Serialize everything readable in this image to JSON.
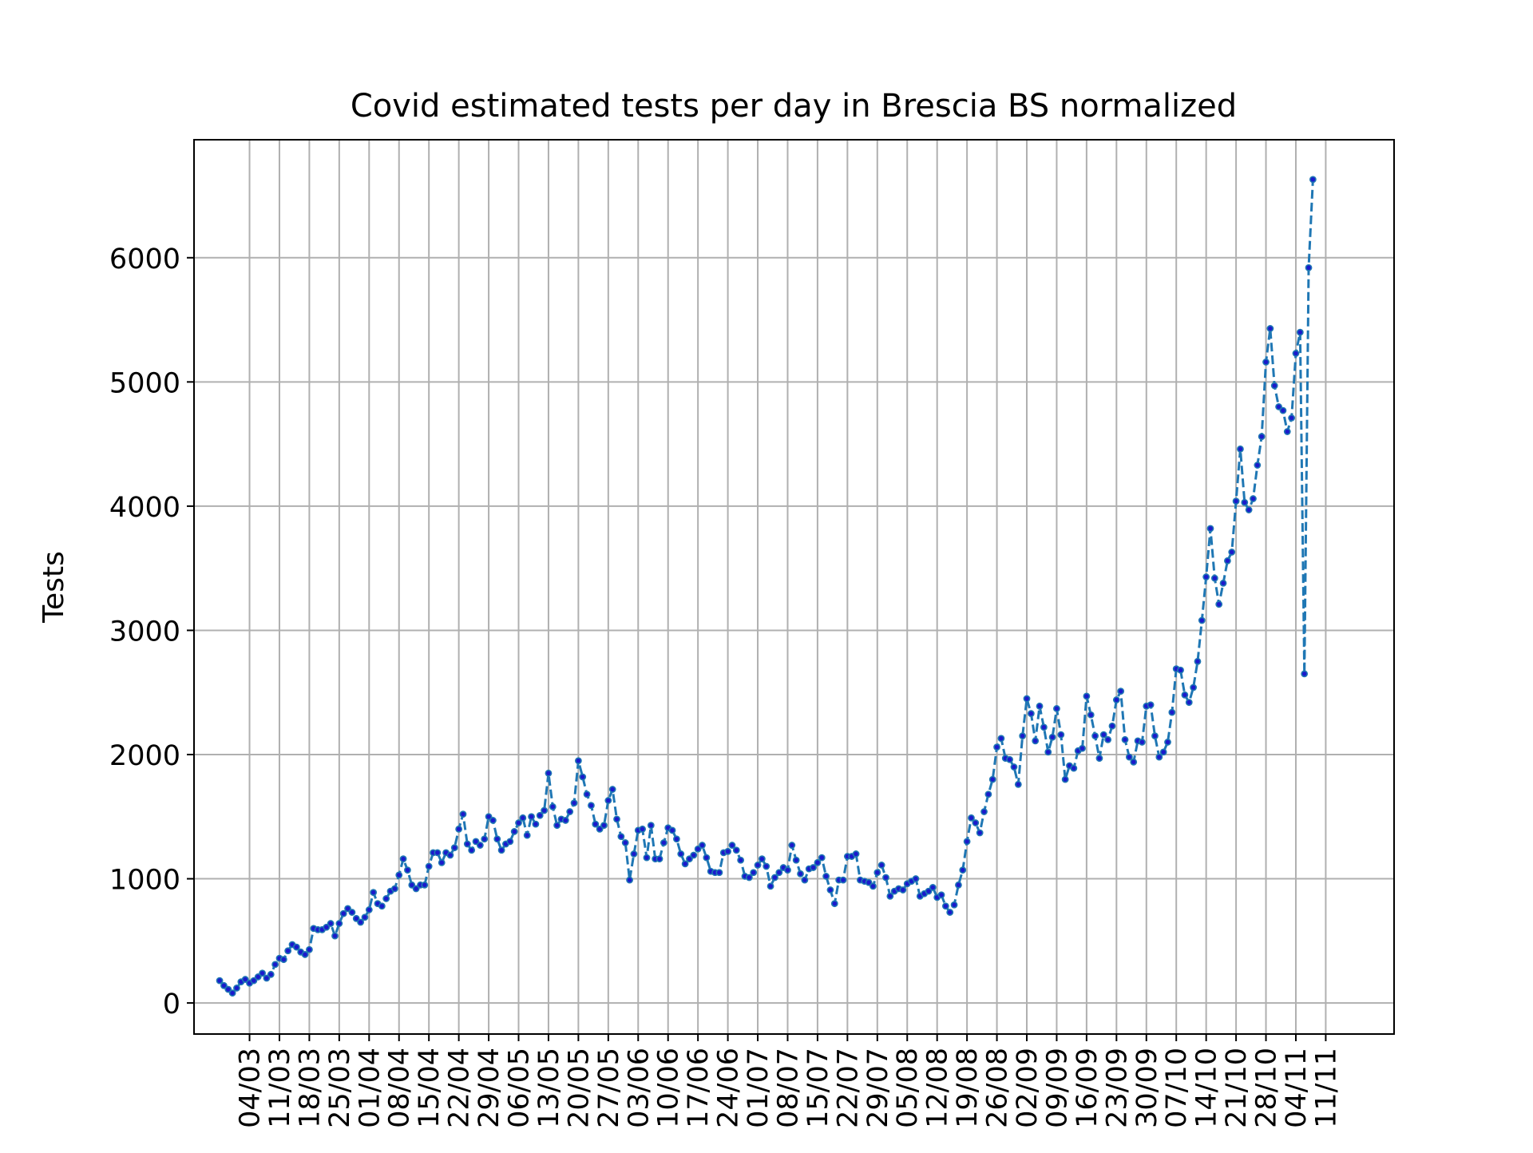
{
  "chart_data": {
    "type": "line",
    "title": "Covid estimated tests per day in Brescia BS normalized",
    "xlabel": "",
    "ylabel": "Tests",
    "x_tick_labels": [
      "04/03",
      "11/03",
      "18/03",
      "25/03",
      "01/04",
      "08/04",
      "15/04",
      "22/04",
      "29/04",
      "06/05",
      "13/05",
      "20/05",
      "27/05",
      "03/06",
      "10/06",
      "17/06",
      "24/06",
      "01/07",
      "08/07",
      "15/07",
      "22/07",
      "29/07",
      "05/08",
      "12/08",
      "19/08",
      "26/08",
      "02/09",
      "09/09",
      "16/09",
      "23/09",
      "30/09",
      "07/10",
      "14/10",
      "21/10",
      "28/10",
      "04/11",
      "11/11"
    ],
    "y_ticks": [
      0,
      1000,
      2000,
      3000,
      4000,
      5000,
      6000
    ],
    "ylim": [
      -250,
      6950
    ],
    "xlim_days": [
      -6,
      275
    ],
    "grid": true,
    "legend": "none",
    "line_style": "dashed",
    "marker": "dot",
    "colors": {
      "line": "#1f77b4",
      "marker_edge": "#1f77b4",
      "marker_face": "#1a1acc",
      "grid": "#b0b0b0",
      "axes": "#000000",
      "background": "#ffffff"
    },
    "series": [
      {
        "x_start": "26/02",
        "values": [
          180,
          140,
          110,
          80,
          120,
          170,
          190,
          160,
          180,
          210,
          240,
          200,
          230,
          310,
          360,
          350,
          420,
          470,
          450,
          410,
          390,
          430,
          600,
          590,
          590,
          610,
          640,
          540,
          640,
          720,
          760,
          730,
          680,
          650,
          690,
          750,
          890,
          800,
          780,
          840,
          900,
          920,
          1030,
          1160,
          1070,
          950,
          920,
          950,
          950,
          1100,
          1210,
          1210,
          1130,
          1210,
          1190,
          1250,
          1400,
          1520,
          1280,
          1230,
          1300,
          1270,
          1320,
          1500,
          1470,
          1320,
          1230,
          1280,
          1300,
          1380,
          1450,
          1490,
          1350,
          1500,
          1440,
          1510,
          1550,
          1850,
          1580,
          1430,
          1480,
          1470,
          1540,
          1610,
          1950,
          1820,
          1680,
          1590,
          1440,
          1400,
          1430,
          1630,
          1720,
          1480,
          1340,
          1290,
          990,
          1200,
          1390,
          1400,
          1170,
          1430,
          1160,
          1160,
          1290,
          1410,
          1390,
          1320,
          1200,
          1120,
          1160,
          1190,
          1240,
          1270,
          1170,
          1060,
          1050,
          1050,
          1210,
          1220,
          1270,
          1230,
          1150,
          1020,
          1010,
          1050,
          1110,
          1160,
          1100,
          940,
          1010,
          1050,
          1090,
          1070,
          1270,
          1150,
          1040,
          990,
          1080,
          1090,
          1130,
          1170,
          1020,
          910,
          800,
          990,
          990,
          1180,
          1180,
          1200,
          990,
          980,
          970,
          940,
          1050,
          1110,
          1010,
          860,
          900,
          920,
          910,
          960,
          980,
          1000,
          860,
          880,
          900,
          930,
          850,
          870,
          780,
          730,
          790,
          950,
          1070,
          1300,
          1490,
          1450,
          1370,
          1540,
          1680,
          1800,
          2060,
          2130,
          1970,
          1960,
          1900,
          1760,
          2150,
          2450,
          2330,
          2110,
          2390,
          2220,
          2020,
          2140,
          2370,
          2160,
          1800,
          1910,
          1890,
          2030,
          2050,
          2470,
          2320,
          2150,
          1970,
          2160,
          2120,
          2230,
          2440,
          2510,
          2120,
          1980,
          1940,
          2110,
          2100,
          2390,
          2400,
          2150,
          1980,
          2020,
          2100,
          2340,
          2690,
          2680,
          2480,
          2420,
          2540,
          2750,
          3080,
          3430,
          3820,
          3420,
          3210,
          3380,
          3560,
          3630,
          4040,
          4460,
          4030,
          3970,
          4060,
          4330,
          4560,
          5160,
          5430,
          4970,
          4800,
          4770,
          4600,
          4710,
          5230,
          5400,
          2650,
          5920,
          6630
        ]
      }
    ]
  }
}
